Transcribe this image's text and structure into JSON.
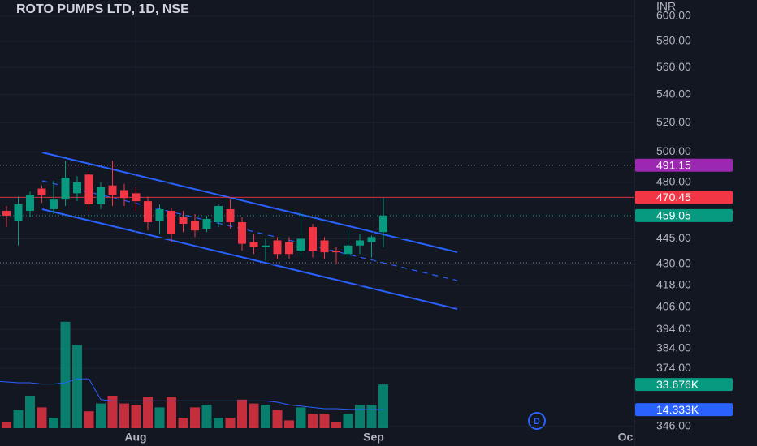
{
  "chart_data": {
    "type": "candlestick",
    "title": "ROTO PUMPS LTD, 1D, NSE",
    "currency": "INR",
    "log_scale": true,
    "ylim": [
      337,
      613
    ],
    "yticks": [
      {
        "value": 600,
        "label": "600.00"
      },
      {
        "value": 580,
        "label": "580.00"
      },
      {
        "value": 560,
        "label": "560.00"
      },
      {
        "value": 540,
        "label": "540.00"
      },
      {
        "value": 520,
        "label": "520.00"
      },
      {
        "value": 500,
        "label": "500.00"
      },
      {
        "value": 480,
        "label": "480.00"
      },
      {
        "value": 445,
        "label": "445.00"
      },
      {
        "value": 430,
        "label": "430.00"
      },
      {
        "value": 418,
        "label": "418.00"
      },
      {
        "value": 406,
        "label": "406.00"
      },
      {
        "value": 394,
        "label": "394.00"
      },
      {
        "value": 384,
        "label": "384.00"
      },
      {
        "value": 374,
        "label": "374.00"
      },
      {
        "value": 346,
        "label": "346.00"
      }
    ],
    "time_labels": [
      "Aug",
      "Sep",
      "Oc"
    ],
    "up_color": "#089981",
    "down_color": "#f23645",
    "open": [
      462,
      456,
      462,
      476,
      463,
      469,
      473,
      485,
      466,
      478,
      475,
      473,
      468,
      456,
      462,
      458,
      456,
      451,
      455,
      463,
      455,
      443,
      440,
      444,
      443,
      438,
      452,
      444,
      438,
      436,
      441,
      443,
      449
    ],
    "high": [
      465,
      471,
      474,
      478,
      481,
      494,
      484,
      487,
      480,
      494,
      479,
      477,
      471,
      466,
      464,
      462,
      460,
      459,
      466,
      469,
      458,
      448,
      445,
      446,
      446,
      461,
      454,
      446,
      440,
      450,
      448,
      447,
      470
    ],
    "low": [
      452,
      441,
      458,
      467,
      460,
      465,
      468,
      462,
      463,
      465,
      465,
      462,
      450,
      448,
      443,
      449,
      446,
      449,
      452,
      451,
      438,
      436,
      432,
      433,
      433,
      434,
      434,
      433,
      430,
      434,
      436,
      434,
      440
    ],
    "close": [
      459,
      466,
      472,
      472,
      469,
      483,
      480,
      466,
      477,
      472,
      470,
      468,
      455,
      463,
      448,
      454,
      450,
      457,
      465,
      455,
      442,
      440,
      441,
      436,
      436,
      445,
      438,
      437,
      437,
      441,
      444,
      446,
      459.05
    ],
    "volume": [
      5,
      14,
      25,
      16,
      8,
      82,
      64,
      13,
      19,
      25,
      19,
      18,
      24,
      16,
      24,
      8,
      16,
      18,
      8,
      8,
      22,
      19,
      18,
      14,
      6,
      16,
      11,
      11,
      5,
      11,
      18,
      18,
      33.676
    ],
    "volume_ma": [
      36,
      35,
      35,
      34,
      34,
      35,
      38,
      38,
      22,
      21,
      21,
      21,
      21,
      21,
      21,
      21,
      21,
      21,
      21,
      21,
      21,
      21,
      21,
      20,
      18,
      17,
      16,
      15,
      15,
      14.5,
      14.4,
      14.3,
      14.333
    ],
    "price_labels": [
      {
        "value": 491.15,
        "label": "491.15",
        "color": "#9c27b0"
      },
      {
        "value": 470.45,
        "label": "470.45",
        "color": "#f23645"
      },
      {
        "value": 459.05,
        "label": "459.05",
        "color": "#089981"
      }
    ],
    "volume_label": {
      "value": 33.676,
      "label": "33.676K",
      "color": "#089981"
    },
    "volume_ma_label": {
      "value": 14.333,
      "label": "14.333K",
      "color": "#2962ff"
    },
    "marker": "D"
  }
}
